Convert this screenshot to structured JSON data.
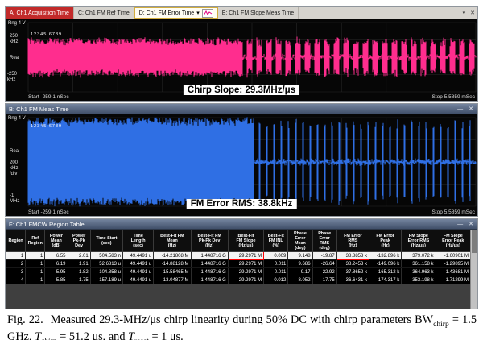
{
  "icons": {
    "close": "✕",
    "dropdown": "▾",
    "minimize": "—"
  },
  "window_a": {
    "tabs": [
      {
        "label": "A: Ch1 Acquisition Time"
      },
      {
        "label": "C: Ch1 FM Ref Time"
      },
      {
        "label": "D: Ch1 FM Error Time"
      },
      {
        "label": "E: Ch1 FM Slope Meas Time"
      }
    ],
    "rng": "Rng 4  V",
    "markers": "12345 6789",
    "y_top": "250\nkHz",
    "y_mid": "Real",
    "y_bottom": "-250\nkHz",
    "x_start": "Start -259.1 nSec",
    "x_stop": "Stop 5.5859 mSec",
    "annotation": "Chirp Slope: 29.3MHz/μs",
    "trace_color": "#ff2d8e"
  },
  "window_b": {
    "title": "B: Ch1 FM Meas Time",
    "rng": "Rng 4  V",
    "markers": "12345 6789",
    "y_mid": "Real",
    "y_scale": "200\nkHz\n/div",
    "y_bottom": "-1\nMHz",
    "x_start": "Start -259.1 nSec",
    "x_stop": "Stop 5.5859 mSec",
    "annotation": "FM Error RMS: 38.8kHz",
    "trace_color": "#2f6fe4"
  },
  "window_f": {
    "title": "F: Ch1 FMCW Region Table",
    "columns": [
      "Region",
      "Ref\nRegion",
      "Power\nMean\n(dB)",
      "Power\nPk-Pk\nDev",
      "Time Start\n(sec)",
      "Time\nLength\n(sec)",
      "Best-Fit FM\nMean\n(Hz)",
      "Best-Fit FM\nPk-Pk Dev\n(Hz)",
      "Best-Fit\nFM Slope\n(Hz/us)",
      "Best-Fit\nFM INL\n(%)",
      "Phase\nError\nMean\n(deg)",
      "Phase\nError\nRMS\n(deg)",
      "FM Error\nRMS\n(Hz)",
      "FM Error\nPeak\n(Hz)",
      "FM Slope\nError RMS\n(Hz/us)",
      "FM Slope\nError Peak\n(Hz/us)"
    ],
    "rows": [
      [
        "1",
        "1",
        "6.55",
        "2.01",
        "504.583 n",
        "49.4491 u",
        "-14.21808 M",
        "1.448716 G",
        "29.2971 M",
        "0.009",
        "9.148",
        "-19.87",
        "38.8853 k",
        "-132.896 k",
        "379.072 k",
        "-1.60901 M"
      ],
      [
        "2",
        "1",
        "6.19",
        "1.91",
        "52.6813 u",
        "49.4491 u",
        "-14.88128 M",
        "1.448716 G",
        "29.2971 M",
        "0.011",
        "9.686",
        "-26.64",
        "38.2453 k",
        "-149.096 k",
        "361.158 k",
        "-1.29895 M"
      ],
      [
        "3",
        "1",
        "5.95",
        "1.82",
        "104.858 u",
        "49.4491 u",
        "-15.58465 M",
        "1.448716 G",
        "29.2971 M",
        "0.011",
        "9.17",
        "-22.92",
        "37.8652 k",
        "-165.312 k",
        "364.963 k",
        "1.43681 M"
      ],
      [
        "4",
        "1",
        "5.85",
        "1.75",
        "157.189 u",
        "49.4491 u",
        "-13.04877 M",
        "1.448716 G",
        "29.2971 M",
        "0.012",
        "8.052",
        "-17.75",
        "36.6431 k",
        "-174.317 k",
        "353.198 k",
        "1.71299 M"
      ]
    ],
    "selected_row": 0,
    "highlight_cells": [
      [
        0,
        8
      ],
      [
        0,
        12
      ]
    ]
  },
  "caption": {
    "fig": "Fig. 22.",
    "p1": "Measured 29.3-MHz/μs chirp linearity during 50% DC with chirp parameters BW",
    "s1": "chirp",
    "p2": " = 1.5 GHz, ",
    "v1": "T",
    "s2": "chirp",
    "p3": " = 51.2 μs, and ",
    "v2": "T",
    "s3": "reset",
    "p4": " = 1 μs."
  }
}
